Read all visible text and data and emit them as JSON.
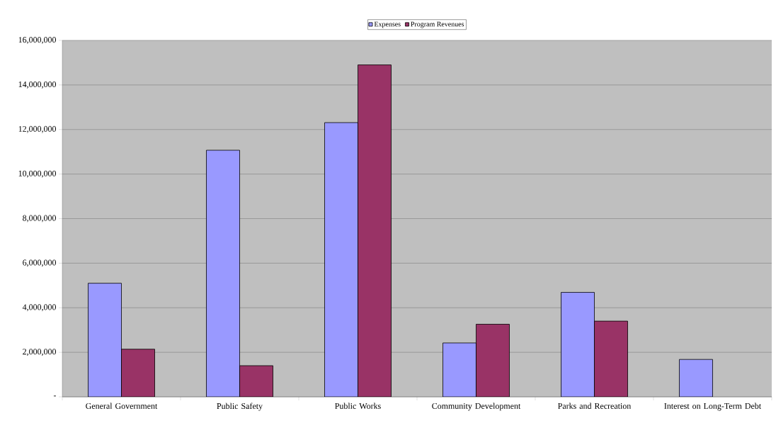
{
  "chart_data": {
    "type": "bar",
    "categories": [
      "General Government",
      "Public Safety",
      "Public Works",
      "Community Development",
      "Parks and Recreation",
      "Interest on Long-Term Debt"
    ],
    "series": [
      {
        "name": "Expenses",
        "color": "#9999ff",
        "values": [
          5100000,
          11070000,
          12310000,
          2420000,
          4690000,
          1680000
        ]
      },
      {
        "name": "Program Revenues",
        "color": "#993366",
        "values": [
          2140000,
          1400000,
          14900000,
          3260000,
          3400000,
          null
        ]
      }
    ],
    "ylim": [
      0,
      16000000
    ],
    "yticks": [
      {
        "value": 0,
        "label": "-"
      },
      {
        "value": 2000000,
        "label": "2,000,000"
      },
      {
        "value": 4000000,
        "label": "4,000,000"
      },
      {
        "value": 6000000,
        "label": "6,000,000"
      },
      {
        "value": 8000000,
        "label": "8,000,000"
      },
      {
        "value": 10000000,
        "label": "10,000,000"
      },
      {
        "value": 12000000,
        "label": "12,000,000"
      },
      {
        "value": 14000000,
        "label": "14,000,000"
      },
      {
        "value": 16000000,
        "label": "16,000,000"
      }
    ],
    "grid": "y",
    "legend": "top"
  }
}
